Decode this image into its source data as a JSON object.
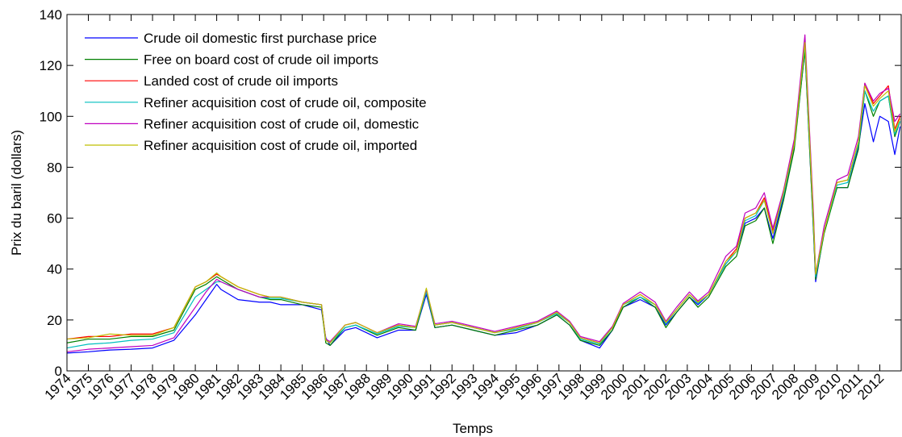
{
  "chart_data": {
    "type": "line",
    "xlabel": "Temps",
    "ylabel": "Prix du baril (dollars)",
    "x": [
      1974,
      1975,
      1976,
      1977,
      1978,
      1979,
      1979.5,
      1980,
      1980.5,
      1981,
      1981.2,
      1982,
      1983,
      1983.5,
      1984,
      1985,
      1985.9,
      1986.1,
      1986.3,
      1987,
      1987.5,
      1988.5,
      1989.5,
      1990.3,
      1990.8,
      1991.2,
      1992,
      1993,
      1994,
      1995,
      1996,
      1996.9,
      1997.5,
      1998,
      1998.9,
      1999.5,
      2000,
      2000.8,
      2001.5,
      2002,
      2002.5,
      2003.1,
      2003.5,
      2004,
      2004.8,
      2005.3,
      2005.7,
      2006.2,
      2006.6,
      2007,
      2007.5,
      2008,
      2008.5,
      2008.9,
      2009,
      2009.4,
      2010,
      2010.5,
      2011,
      2011.3,
      2011.7,
      2012,
      2012.4,
      2012.7,
      2012.95
    ],
    "series": [
      {
        "name": "Crude oil domestic first purchase price",
        "color": "#0000ff",
        "values": [
          7,
          7.5,
          8.2,
          8.5,
          9,
          12,
          17,
          22,
          28,
          34,
          32,
          28,
          27,
          27,
          26,
          26,
          24,
          13,
          10,
          16,
          17,
          13,
          16,
          16,
          30,
          17,
          18,
          16,
          14,
          15,
          18,
          22,
          18,
          12,
          9,
          16,
          25,
          28,
          25,
          18,
          23,
          29,
          26,
          30,
          42,
          47,
          58,
          60,
          64,
          52,
          68,
          88,
          126,
          55,
          35,
          55,
          72,
          72,
          88,
          105,
          90,
          100,
          98,
          85,
          96
        ]
      },
      {
        "name": "Free on board cost of crude oil imports",
        "color": "#008000",
        "values": [
          11,
          12.5,
          12.5,
          13.5,
          13.5,
          16,
          24,
          32,
          34,
          37,
          36,
          32,
          29,
          28,
          28,
          26,
          25,
          11,
          10,
          17,
          18,
          14,
          17,
          16,
          31,
          17,
          18,
          16,
          14,
          16,
          18,
          22,
          18,
          12,
          10,
          16,
          25,
          29,
          25,
          17,
          23,
          29,
          25,
          29,
          41,
          45,
          57,
          59,
          64,
          50,
          67,
          87,
          126,
          55,
          36,
          54,
          72,
          72,
          87,
          110,
          100,
          106,
          108,
          92,
          98
        ]
      },
      {
        "name": "Landed cost of crude oil imports",
        "color": "#ff0000",
        "values": [
          12.5,
          13.5,
          13.5,
          14.5,
          14.5,
          17,
          25,
          33,
          35,
          38,
          37,
          33,
          30,
          29,
          29,
          27,
          26,
          12,
          11,
          18,
          19,
          15,
          18,
          17,
          32,
          18,
          19,
          17,
          15,
          17,
          19,
          23,
          19,
          13,
          11,
          17,
          26,
          30,
          26,
          19,
          24,
          30,
          27,
          30,
          43,
          48,
          60,
          62,
          68,
          55,
          70,
          90,
          130,
          60,
          38,
          55,
          74,
          75,
          90,
          113,
          105,
          108,
          112,
          95,
          100
        ]
      },
      {
        "name": "Refiner acquisition cost of crude oil, composite",
        "color": "#00bfbf",
        "values": [
          9,
          10.5,
          11,
          12,
          12.5,
          15,
          22,
          29,
          32,
          35,
          35,
          32,
          29,
          28.5,
          28.5,
          27,
          26,
          12,
          11,
          17,
          18,
          14.5,
          17.5,
          17,
          31,
          18,
          19,
          17,
          15,
          16.5,
          19,
          22.5,
          19,
          12.5,
          10.5,
          17,
          26,
          29,
          26,
          18.5,
          24,
          30,
          26.5,
          30,
          42,
          47,
          59,
          61,
          67,
          54,
          69,
          89,
          128,
          58,
          37,
          55,
          73,
          74,
          89,
          110,
          102,
          106,
          108,
          93,
          98
        ]
      },
      {
        "name": "Refiner acquisition cost of crude oil, domestic",
        "color": "#bf00bf",
        "values": [
          7.5,
          8.5,
          9,
          9.5,
          10,
          13,
          19,
          25,
          31,
          36,
          35,
          32,
          29,
          29,
          29,
          27,
          26,
          12.5,
          11.5,
          18,
          19,
          15,
          18.5,
          17.5,
          32,
          18.5,
          19.5,
          17.5,
          15.5,
          17.5,
          19.5,
          23.5,
          19.5,
          13.5,
          11.5,
          17.5,
          26.5,
          31,
          27,
          19.5,
          25,
          31,
          27.5,
          31,
          45,
          49,
          62,
          64,
          70,
          56,
          71,
          91,
          132,
          62,
          38,
          57,
          75,
          77,
          92,
          113,
          106,
          109,
          111,
          98,
          101
        ]
      },
      {
        "name": "Refiner acquisition cost of crude oil, imported",
        "color": "#bfbf00",
        "values": [
          12.5,
          13,
          14.5,
          14,
          14,
          17,
          25,
          33,
          35,
          38.5,
          37,
          33,
          30,
          29,
          29,
          27,
          26,
          12,
          11,
          18,
          19,
          15,
          18,
          17,
          32.5,
          18,
          19,
          17,
          15,
          17,
          19,
          23,
          19,
          13,
          11,
          17,
          26,
          30,
          26,
          19,
          24,
          30,
          27,
          30,
          43,
          47,
          60,
          62,
          67,
          54,
          70,
          89,
          129,
          59,
          38,
          55,
          74,
          75,
          90,
          112,
          104,
          107,
          110,
          94,
          99
        ]
      }
    ],
    "xlim": [
      1974,
      2013
    ],
    "xticks": [
      1974,
      1975,
      1976,
      1977,
      1978,
      1979,
      1980,
      1981,
      1982,
      1983,
      1984,
      1985,
      1986,
      1987,
      1988,
      1989,
      1990,
      1991,
      1992,
      1993,
      1994,
      1995,
      1996,
      1997,
      1998,
      1999,
      2000,
      2001,
      2002,
      2003,
      2004,
      2005,
      2006,
      2007,
      2008,
      2009,
      2010,
      2011,
      2012
    ],
    "ylim": [
      0,
      140
    ],
    "yticks": [
      0,
      20,
      40,
      60,
      80,
      100,
      120,
      140
    ],
    "legend": "upper left",
    "grid": false
  }
}
